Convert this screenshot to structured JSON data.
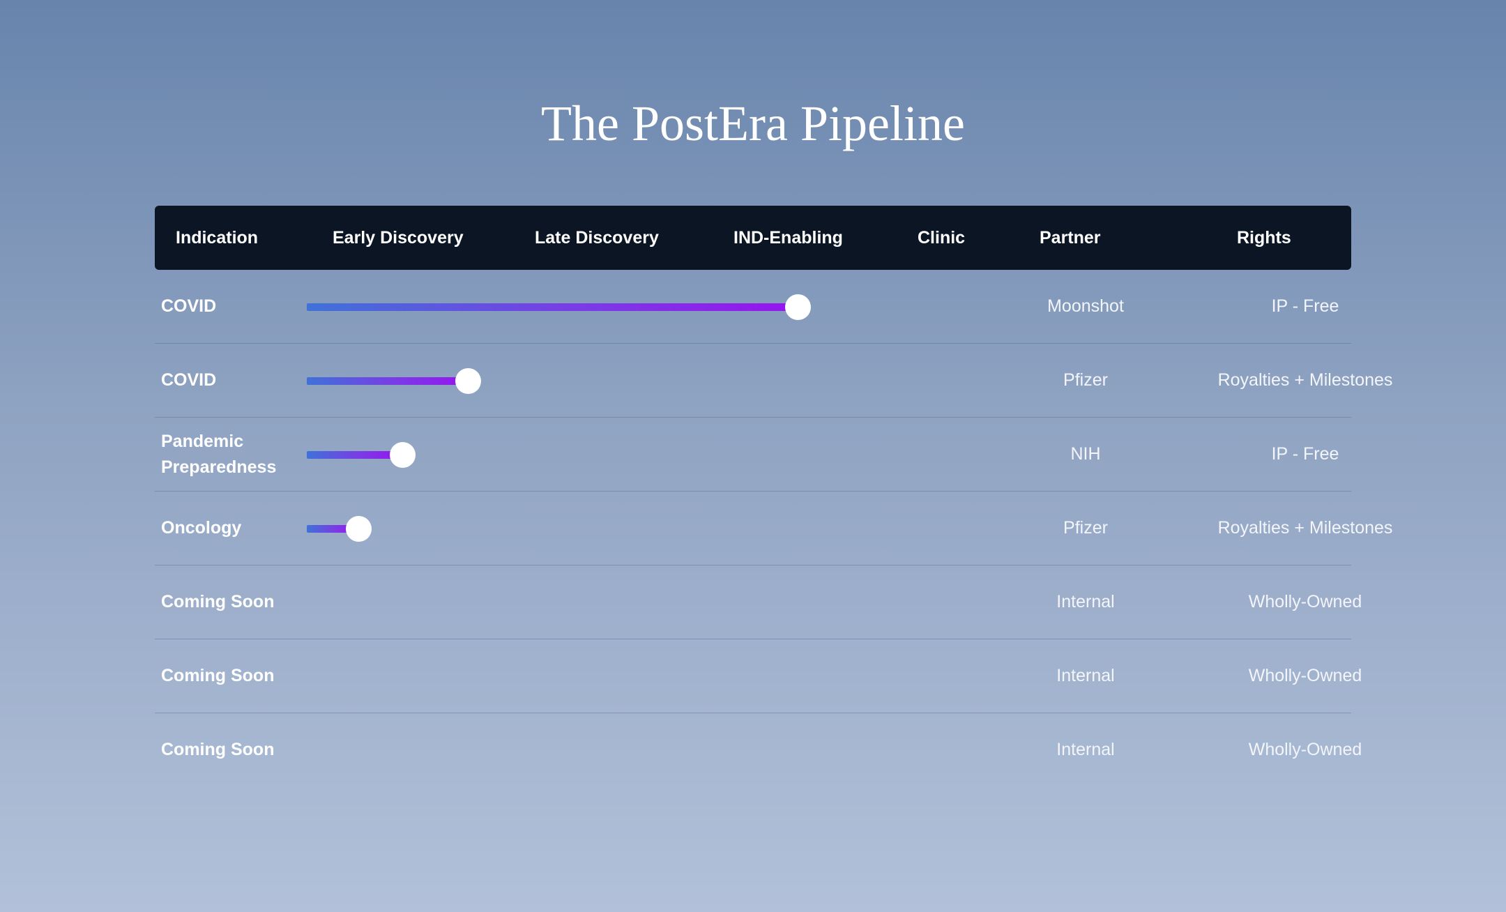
{
  "title": "The PostEra Pipeline",
  "headers": {
    "indication": "Indication",
    "early_discovery": "Early Discovery",
    "late_discovery": "Late Discovery",
    "ind_enabling": "IND-Enabling",
    "clinic": "Clinic",
    "partner": "Partner",
    "rights": "Rights"
  },
  "colors": {
    "header_background": "#0b1523",
    "progress_start": "#3f72d8",
    "progress_end": "#9614ee",
    "knob": "#ffffff"
  },
  "stages": [
    "Early Discovery",
    "Late Discovery",
    "IND-Enabling",
    "Clinic"
  ],
  "rows": [
    {
      "indication": "COVID",
      "progress": 0.67,
      "partner": "Moonshot",
      "rights": "IP - Free"
    },
    {
      "indication": "COVID",
      "progress": 0.22,
      "partner": "Pfizer",
      "rights": "Royalties + Milestones"
    },
    {
      "indication": "Pandemic Preparedness",
      "progress": 0.13,
      "partner": "NIH",
      "rights": "IP - Free"
    },
    {
      "indication": "Oncology",
      "progress": 0.07,
      "partner": "Pfizer",
      "rights": "Royalties + Milestones"
    },
    {
      "indication": "Coming Soon",
      "progress": 0,
      "partner": "Internal",
      "rights": "Wholly-Owned"
    },
    {
      "indication": "Coming Soon",
      "progress": 0,
      "partner": "Internal",
      "rights": "Wholly-Owned"
    },
    {
      "indication": "Coming Soon",
      "progress": 0,
      "partner": "Internal",
      "rights": "Wholly-Owned"
    }
  ]
}
